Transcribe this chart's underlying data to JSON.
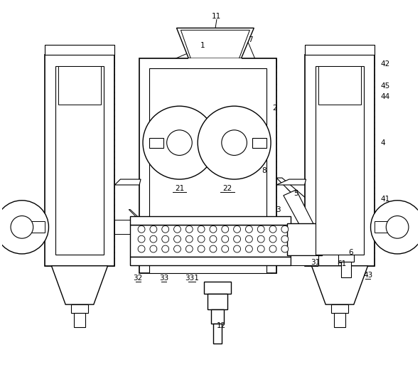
{
  "background_color": "#ffffff",
  "line_color": "#000000",
  "fig_width": 5.91,
  "fig_height": 5.16,
  "dpi": 100
}
